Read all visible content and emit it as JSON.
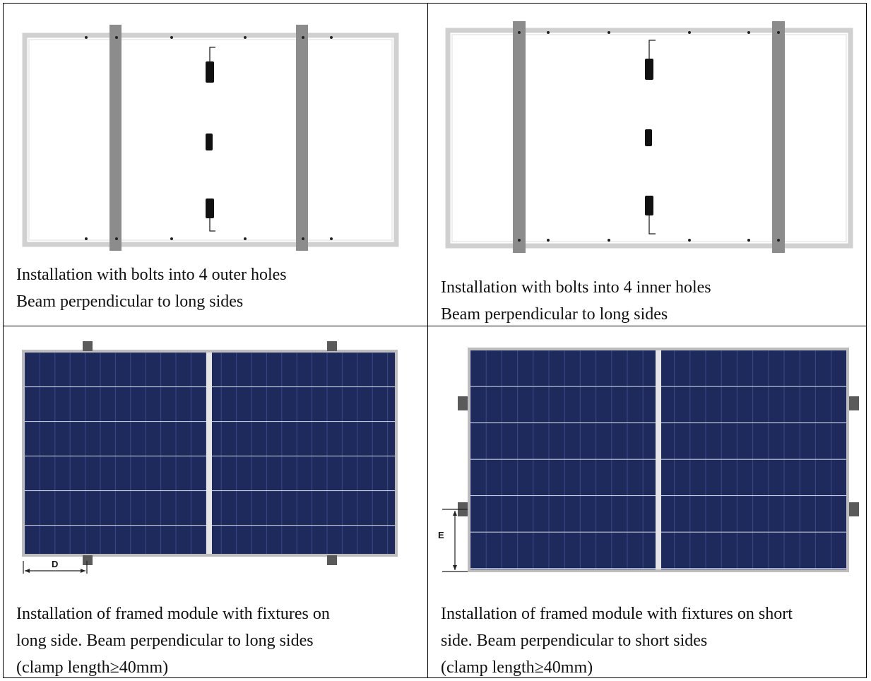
{
  "cells": [
    {
      "caption_lines": [
        "Installation with bolts into 4 outer holes",
        "Beam perpendicular to long sides"
      ]
    },
    {
      "caption_lines": [
        "Installation with bolts into 4 inner holes",
        "Beam perpendicular to long sides"
      ]
    },
    {
      "caption_lines": [
        "Installation of framed module with fixtures on",
        "long side.  Beam perpendicular to long sides",
        "(clamp length≥40mm)"
      ],
      "dimension_label": "D"
    },
    {
      "caption_lines": [
        "Installation of framed module with fixtures on short",
        "side.    Beam perpendicular to short sides",
        "(clamp length≥40mm)"
      ],
      "dimension_label": "E"
    }
  ],
  "colors": {
    "frame": "#d6d6d6",
    "beam": "#8c8c8c",
    "panel_cell": "#1e2a5c",
    "panel_border": "#cfcfcf",
    "clamp": "#5a5a5a"
  }
}
